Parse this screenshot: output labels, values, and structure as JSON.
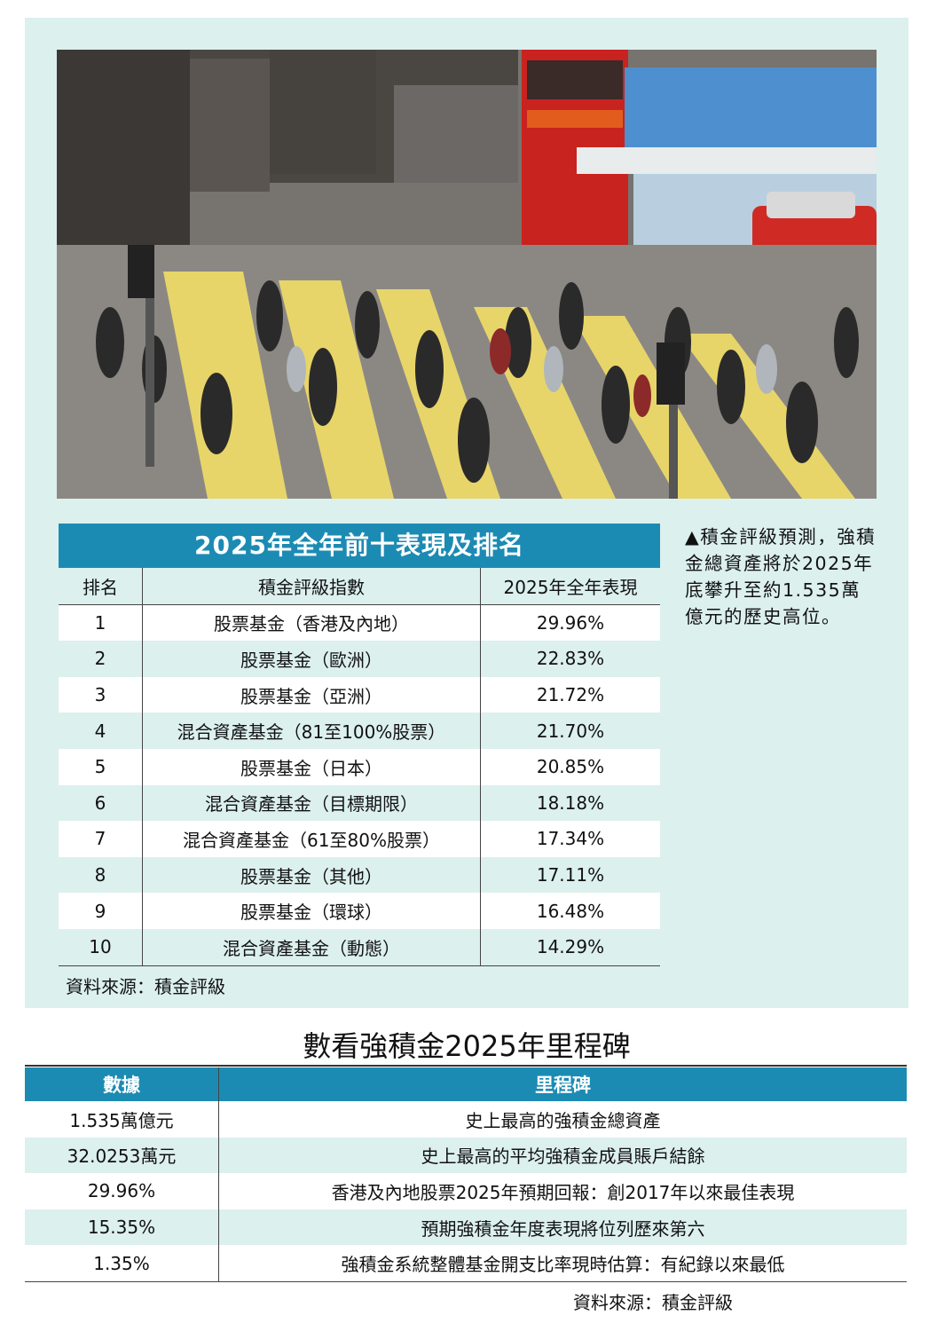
{
  "ranking_table": {
    "title": "2025年全年前十表現及排名",
    "headers": [
      "排名",
      "積金評級指數",
      "2025年全年表現"
    ],
    "rows": [
      {
        "rank": "1",
        "index": "股票基金（香港及內地）",
        "performance": "29.96%"
      },
      {
        "rank": "2",
        "index": "股票基金（歐洲）",
        "performance": "22.83%"
      },
      {
        "rank": "3",
        "index": "股票基金（亞洲）",
        "performance": "21.72%"
      },
      {
        "rank": "4",
        "index": "混合資產基金（81至100%股票）",
        "performance": "21.70%"
      },
      {
        "rank": "5",
        "index": "股票基金（日本）",
        "performance": "20.85%"
      },
      {
        "rank": "6",
        "index": "混合資產基金（目標期限）",
        "performance": "18.18%"
      },
      {
        "rank": "7",
        "index": "混合資產基金（61至80%股票）",
        "performance": "17.34%"
      },
      {
        "rank": "8",
        "index": "股票基金（其他）",
        "performance": "17.11%"
      },
      {
        "rank": "9",
        "index": "股票基金（環球）",
        "performance": "16.48%"
      },
      {
        "rank": "10",
        "index": "混合資產基金（動態）",
        "performance": "14.29%"
      }
    ],
    "source": "資料來源：積金評級"
  },
  "caption": "▲積金評級預測，強積金總資產將於2025年底攀升至約1.535萬億元的歷史高位。",
  "milestones": {
    "heading": "數看強積金2025年里程碑",
    "headers": [
      "數據",
      "里程碑"
    ],
    "rows": [
      {
        "value": "1.535萬億元",
        "milestone": "史上最高的強積金總資產"
      },
      {
        "value": "32.0253萬元",
        "milestone": "史上最高的平均強積金成員賬戶結餘"
      },
      {
        "value": "29.96%",
        "milestone": "香港及內地股票2025年預期回報：創2017年以來最佳表現"
      },
      {
        "value": "15.35%",
        "milestone": "預期強積金年度表現將位列歷來第六"
      },
      {
        "value": "1.35%",
        "milestone": "強積金系統整體基金開支比率現時估算：有紀錄以來最低"
      }
    ],
    "source": "資料來源：積金評級"
  }
}
